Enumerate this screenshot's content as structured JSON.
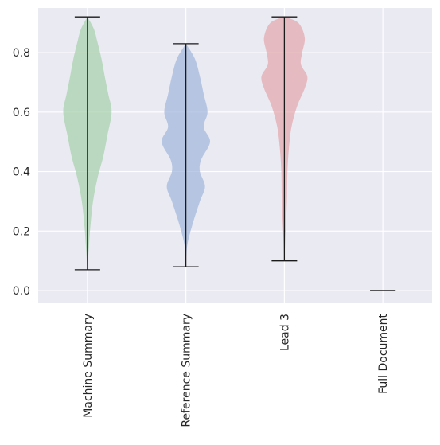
{
  "chart_data": {
    "type": "violin",
    "title": "",
    "xlabel": "",
    "ylabel": "",
    "ylim": [
      -0.04,
      0.95
    ],
    "grid": true,
    "yticks": [
      0.0,
      0.2,
      0.4,
      0.6,
      0.8
    ],
    "ytick_labels": [
      "0.0",
      "0.2",
      "0.4",
      "0.6",
      "0.8"
    ],
    "categories": [
      "Machine Summary",
      "Reference Summary",
      "Lead 3",
      "Full Document"
    ],
    "colors": [
      "#a5cfa9",
      "#a0b5dc",
      "#e3a6ad"
    ],
    "background": "#eaeaf2",
    "series": [
      {
        "category": "Machine Summary",
        "min": 0.07,
        "max": 0.92,
        "density": [
          [
            0.07,
            0.0
          ],
          [
            0.15,
            0.06
          ],
          [
            0.22,
            0.12
          ],
          [
            0.3,
            0.22
          ],
          [
            0.38,
            0.4
          ],
          [
            0.45,
            0.62
          ],
          [
            0.52,
            0.78
          ],
          [
            0.6,
            0.95
          ],
          [
            0.66,
            0.82
          ],
          [
            0.72,
            0.68
          ],
          [
            0.78,
            0.55
          ],
          [
            0.84,
            0.38
          ],
          [
            0.88,
            0.25
          ],
          [
            0.92,
            0.0
          ]
        ]
      },
      {
        "category": "Reference Summary",
        "min": 0.08,
        "max": 0.83,
        "density": [
          [
            0.08,
            0.0
          ],
          [
            0.15,
            0.05
          ],
          [
            0.22,
            0.25
          ],
          [
            0.3,
            0.55
          ],
          [
            0.35,
            0.75
          ],
          [
            0.4,
            0.55
          ],
          [
            0.44,
            0.6
          ],
          [
            0.5,
            0.95
          ],
          [
            0.55,
            0.7
          ],
          [
            0.6,
            0.85
          ],
          [
            0.66,
            0.7
          ],
          [
            0.72,
            0.55
          ],
          [
            0.78,
            0.35
          ],
          [
            0.83,
            0.0
          ]
        ]
      },
      {
        "category": "Lead 3",
        "min": 0.1,
        "max": 0.92,
        "density": [
          [
            0.1,
            0.0
          ],
          [
            0.2,
            0.05
          ],
          [
            0.3,
            0.1
          ],
          [
            0.4,
            0.12
          ],
          [
            0.48,
            0.18
          ],
          [
            0.55,
            0.28
          ],
          [
            0.62,
            0.5
          ],
          [
            0.68,
            0.8
          ],
          [
            0.72,
            0.9
          ],
          [
            0.76,
            0.65
          ],
          [
            0.8,
            0.7
          ],
          [
            0.85,
            0.8
          ],
          [
            0.9,
            0.55
          ],
          [
            0.92,
            0.0
          ]
        ]
      },
      {
        "category": "Full Document",
        "min": 0.0,
        "max": 0.0,
        "density": []
      }
    ]
  }
}
